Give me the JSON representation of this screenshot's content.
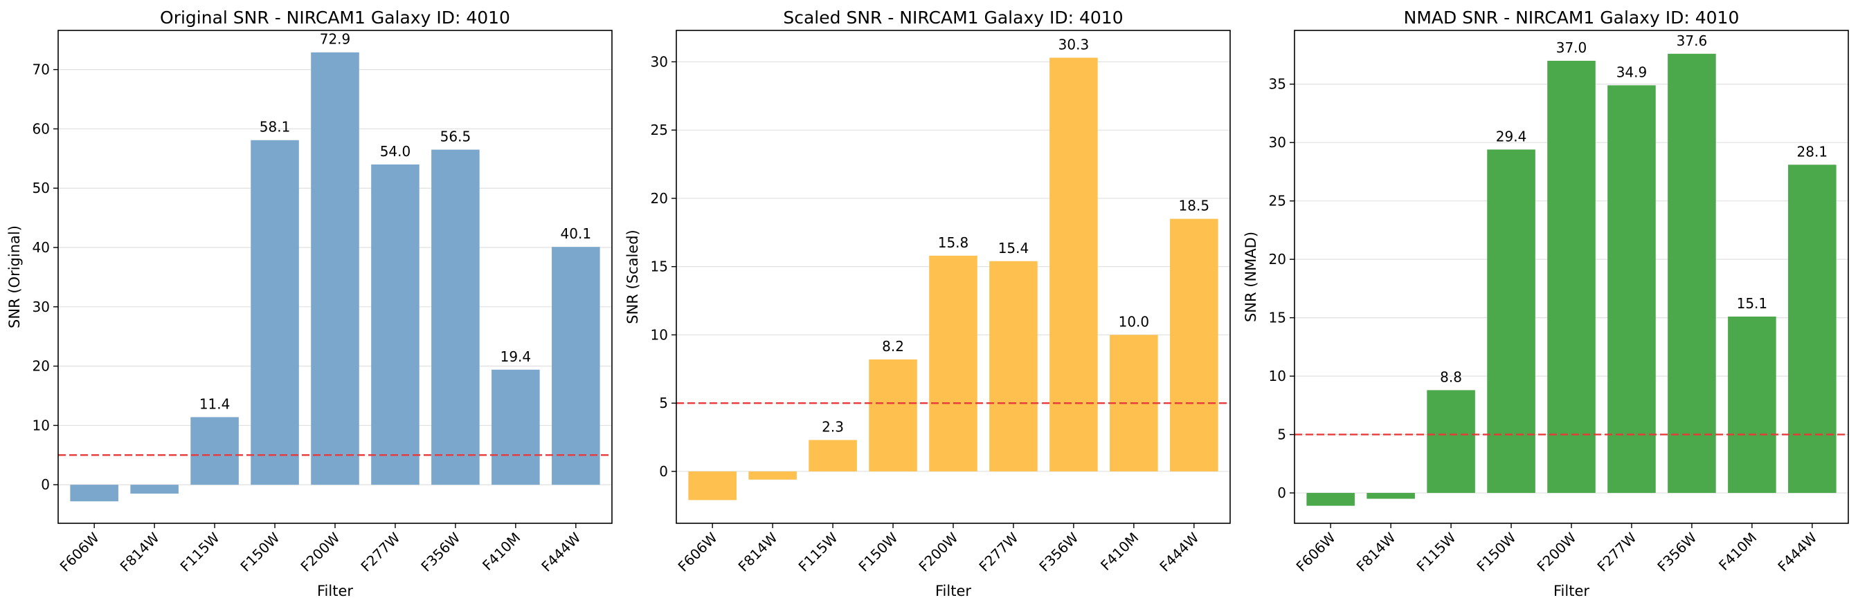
{
  "chart_data": [
    {
      "type": "bar",
      "title": "Original SNR - NIRCAM1 Galaxy ID: 4010",
      "xlabel": "Filter",
      "ylabel": "SNR (Original)",
      "categories": [
        "F606W",
        "F814W",
        "F115W",
        "F150W",
        "F200W",
        "F277W",
        "F356W",
        "F410M",
        "F444W"
      ],
      "values": [
        -2.8,
        -1.5,
        11.4,
        58.1,
        72.9,
        54.0,
        56.5,
        19.4,
        40.1
      ],
      "data_labels": [
        null,
        null,
        "11.4",
        "58.1",
        "72.9",
        "54.0",
        "56.5",
        "19.4",
        "40.1"
      ],
      "ylim": [
        -6.5,
        76.6
      ],
      "yticks": [
        0,
        10,
        20,
        30,
        40,
        50,
        60,
        70
      ],
      "threshold": 5,
      "bar_color": "#7ba7cc",
      "threshold_color": "#e8393b",
      "grid": "horizontal"
    },
    {
      "type": "bar",
      "title": "Scaled SNR - NIRCAM1 Galaxy ID: 4010",
      "xlabel": "Filter",
      "ylabel": "SNR (Scaled)",
      "categories": [
        "F606W",
        "F814W",
        "F115W",
        "F150W",
        "F200W",
        "F277W",
        "F356W",
        "F410M",
        "F444W"
      ],
      "values": [
        -2.1,
        -0.6,
        2.3,
        8.2,
        15.8,
        15.4,
        30.3,
        10.0,
        18.5
      ],
      "data_labels": [
        null,
        null,
        "2.3",
        "8.2",
        "15.8",
        "15.4",
        "30.3",
        "10.0",
        "18.5"
      ],
      "ylim": [
        -3.8,
        32.3
      ],
      "yticks": [
        0,
        5,
        10,
        15,
        20,
        25,
        30
      ],
      "threshold": 5,
      "bar_color": "#fec04f",
      "threshold_color": "#e8393b",
      "grid": "horizontal"
    },
    {
      "type": "bar",
      "title": "NMAD SNR - NIRCAM1 Galaxy ID: 4010",
      "xlabel": "Filter",
      "ylabel": "SNR (NMAD)",
      "categories": [
        "F606W",
        "F814W",
        "F115W",
        "F150W",
        "F200W",
        "F277W",
        "F356W",
        "F410M",
        "F444W"
      ],
      "values": [
        -1.1,
        -0.5,
        8.8,
        29.4,
        37.0,
        34.9,
        37.6,
        15.1,
        28.1
      ],
      "data_labels": [
        null,
        null,
        "8.8",
        "29.4",
        "37.0",
        "34.9",
        "37.6",
        "15.1",
        "28.1"
      ],
      "ylim": [
        -2.6,
        39.6
      ],
      "yticks": [
        0,
        5,
        10,
        15,
        20,
        25,
        30,
        35
      ],
      "threshold": 5,
      "bar_color": "#4ba84b",
      "threshold_color": "#e8393b",
      "grid": "horizontal"
    }
  ]
}
